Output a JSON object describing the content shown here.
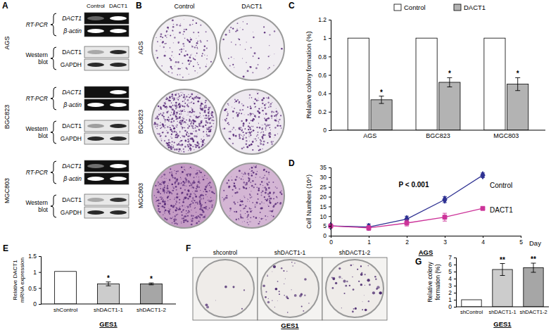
{
  "panel_a": {
    "label": "A",
    "columns": [
      "Control",
      "DACT1"
    ],
    "cell_lines": [
      {
        "name": "AGS",
        "rows": [
          {
            "method": "RT-PCR",
            "bands": [
              "DACT1",
              "β-actin"
            ]
          },
          {
            "method": "Western blot",
            "bands": [
              "DACT1",
              "GAPDH"
            ]
          }
        ]
      },
      {
        "name": "BGC823",
        "rows": [
          {
            "method": "RT-PCR",
            "bands": [
              "DACT1",
              "β-actin"
            ]
          },
          {
            "method": "Western blot",
            "bands": [
              "DACT1",
              "GAPDH"
            ]
          }
        ]
      },
      {
        "name": "MGC803",
        "rows": [
          {
            "method": "RT-PCR",
            "bands": [
              "DACT1",
              "β-actin"
            ]
          },
          {
            "method": "Western blot",
            "bands": [
              "DACT1",
              "GAPDH"
            ]
          }
        ]
      }
    ]
  },
  "panel_b": {
    "label": "B",
    "columns": [
      "Control",
      "DACT1"
    ],
    "rows": [
      "AGS",
      "BGC823",
      "MGC803"
    ]
  },
  "panel_f": {
    "label": "F",
    "columns": [
      "shcontrol",
      "shDACT1-1",
      "shDACT1-2"
    ],
    "subtitle": "GES1"
  },
  "chart_data": [
    {
      "panel": "C",
      "type": "bar",
      "categories": [
        "AGS",
        "BGC823",
        "MGC803"
      ],
      "series": [
        {
          "name": "Control",
          "color": "#ffffff",
          "values": [
            1,
            1,
            1
          ]
        },
        {
          "name": "DACT1",
          "color": "#b3b3b3",
          "values": [
            0.33,
            0.52,
            0.5
          ],
          "errors": [
            0.04,
            0.05,
            0.07
          ],
          "annotations": [
            "*",
            "*",
            "*"
          ]
        }
      ],
      "y_label": "Relative colony formation (%)",
      "ylim": [
        0,
        1.2
      ],
      "yticks": [
        0,
        0.2,
        0.4,
        0.6,
        0.8,
        1,
        1.2
      ],
      "legend": "top"
    },
    {
      "panel": "D",
      "type": "line",
      "x": [
        0,
        1,
        2,
        3,
        4
      ],
      "series": [
        {
          "name": "Control",
          "color": "#2e3192",
          "marker": "diamond",
          "values": [
            5,
            4.5,
            8.5,
            18.5,
            31
          ],
          "errors": [
            0.3,
            1.5,
            1.5,
            1.5,
            1.2
          ]
        },
        {
          "name": "DACT1",
          "color": "#cc3399",
          "marker": "square",
          "values": [
            5,
            4,
            6.5,
            9.5,
            14
          ],
          "errors": [
            0.3,
            1.2,
            1.5,
            2,
            0.8
          ]
        }
      ],
      "annotation": "P < 0.001",
      "x_label": "Day",
      "subtitle": "AGS",
      "y_label": "Cell Numbers (10⁴)",
      "xlim": [
        0,
        5
      ],
      "xticks": [
        0,
        1,
        2,
        3,
        4,
        5
      ],
      "ylim": [
        0,
        35
      ],
      "yticks": [
        0,
        5,
        10,
        15,
        20,
        25,
        30,
        35
      ],
      "legend": "right"
    },
    {
      "panel": "E",
      "type": "bar",
      "categories": [
        "shControl",
        "shDACT1-1",
        "shDACT1-2"
      ],
      "values": [
        1.02,
        0.63,
        0.63
      ],
      "errors": [
        null,
        0.06,
        0.03
      ],
      "annotations": [
        null,
        "*",
        "*"
      ],
      "colors": [
        "#ffffff",
        "#cccccc",
        "#a6a6a6"
      ],
      "y_label": "Relative DACT1 mRNA expression",
      "subtitle": "GES1",
      "ylim": [
        0,
        1.5
      ],
      "yticks": [
        0,
        0.5,
        1,
        1.5
      ]
    },
    {
      "panel": "G",
      "type": "bar",
      "categories": [
        "shControl",
        "shDACT1-1",
        "shDACT1-2"
      ],
      "values": [
        1,
        5.3,
        5.55
      ],
      "errors": [
        null,
        0.85,
        0.65
      ],
      "annotations": [
        null,
        "**",
        "**"
      ],
      "colors": [
        "#ffffff",
        "#cccccc",
        "#a6a6a6"
      ],
      "y_label": "Relative colony formation (%)",
      "subtitle": "GES1",
      "ylim": [
        0,
        7
      ],
      "yticks": [
        0,
        1,
        2,
        3,
        4,
        5,
        6,
        7
      ]
    }
  ]
}
